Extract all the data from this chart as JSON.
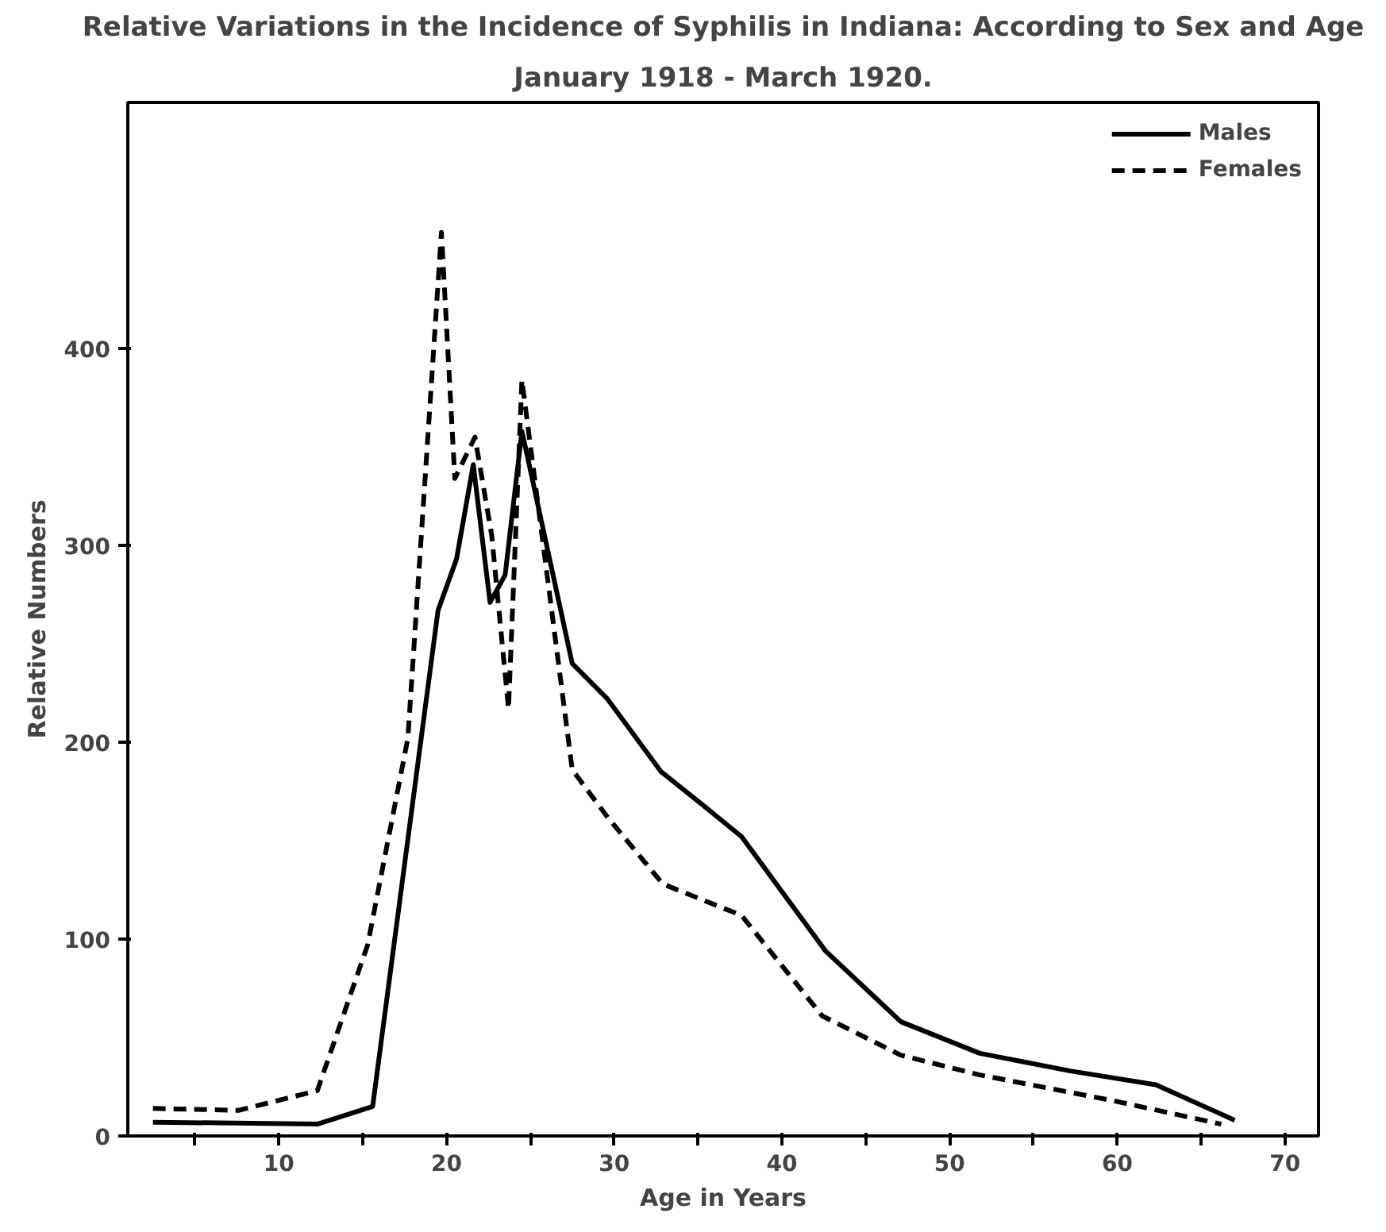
{
  "chart_data": {
    "type": "line",
    "title": "Relative Variations in the Incidence of Syphilis in Indiana: According to Sex and Age",
    "subtitle": "January 1918 - March 1920.",
    "xlabel": "Age in Years",
    "ylabel": "Relative Numbers",
    "xlim": [
      1,
      72
    ],
    "ylim": [
      0,
      525
    ],
    "xticks": [
      {
        "value": 5,
        "label": null
      },
      10,
      {
        "value": 15,
        "label": null
      },
      20,
      {
        "value": 25,
        "label": null
      },
      30,
      {
        "value": 35,
        "label": null
      },
      40,
      {
        "value": 45,
        "label": null
      },
      50,
      {
        "value": 55,
        "label": null
      },
      60,
      {
        "value": 65,
        "label": null
      },
      70
    ],
    "yticks": [
      0,
      100,
      200,
      300,
      400
    ],
    "grid": false,
    "legend": "top right",
    "series": [
      {
        "name": "Males",
        "color": "#000000",
        "line_style": "solid",
        "x": [
          2.5,
          12.3,
          15.6,
          19.5,
          20.6,
          21.6,
          22.6,
          23.5,
          24.5,
          27.5,
          29.6,
          32.8,
          35.3,
          37.6,
          42.6,
          47.1,
          51.8,
          57.2,
          62.3,
          67
        ],
        "values": [
          7,
          6,
          15,
          267,
          293,
          341,
          271,
          285,
          358,
          240,
          222,
          185,
          168,
          152,
          94,
          58,
          42,
          33,
          26,
          8
        ]
      },
      {
        "name": "Females",
        "color": "#000000",
        "line_style": "dashed",
        "x": [
          2.5,
          7.6,
          12.3,
          15.3,
          17.7,
          19.7,
          20.5,
          21.7,
          22.7,
          23.7,
          24.5,
          27.5,
          29.6,
          32.9,
          37.6,
          42.4,
          47.1,
          51.8,
          59.7,
          66.2
        ],
        "values": [
          14,
          13,
          23,
          97,
          202,
          459,
          334,
          355,
          305,
          217,
          384,
          186,
          162,
          128,
          112,
          61,
          41,
          31,
          18,
          6
        ]
      }
    ]
  }
}
